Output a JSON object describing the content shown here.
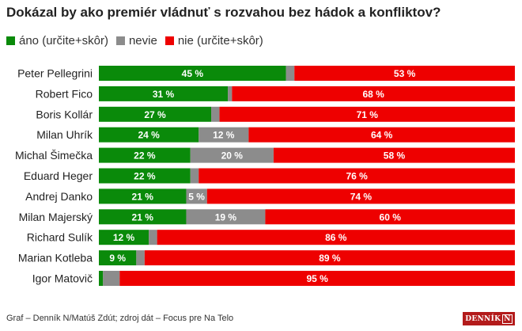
{
  "chart_data": {
    "type": "bar",
    "stacked": true,
    "orientation": "horizontal",
    "title": "Dokázal by ako premiér vládnuť s rozvahou bez hádok a konfliktov?",
    "categories": [
      "Peter Pellegrini",
      "Robert Fico",
      "Boris Kollár",
      "Milan Uhrík",
      "Michal Šimečka",
      "Eduard Heger",
      "Andrej Danko",
      "Milan Majerský",
      "Richard Sulík",
      "Marian Kotleba",
      "Igor Matovič"
    ],
    "series": [
      {
        "name": "áno (určite+skôr)",
        "color": "#0a8a0a",
        "values": [
          45,
          31,
          27,
          24,
          22,
          22,
          21,
          21,
          12,
          9,
          1
        ]
      },
      {
        "name": "nevie",
        "color": "#8c8c8c",
        "values": [
          2,
          1,
          2,
          12,
          20,
          2,
          5,
          19,
          2,
          2,
          4
        ]
      },
      {
        "name": "nie (určite+skôr)",
        "color": "#ee0000",
        "values": [
          53,
          68,
          71,
          64,
          58,
          76,
          74,
          60,
          86,
          89,
          95
        ]
      }
    ],
    "labels": [
      [
        "45 %",
        "",
        "53 %"
      ],
      [
        "31 %",
        "",
        "68 %"
      ],
      [
        "27 %",
        "",
        "71 %"
      ],
      [
        "24 %",
        "12 %",
        "64 %"
      ],
      [
        "22 %",
        "20 %",
        "58 %"
      ],
      [
        "22 %",
        "",
        "76 %"
      ],
      [
        "21 %",
        "5 %",
        "74 %"
      ],
      [
        "21 %",
        "19 %",
        "60 %"
      ],
      [
        "12 %",
        "",
        "86 %"
      ],
      [
        "9 %",
        "",
        "89 %"
      ],
      [
        "",
        "",
        "95 %"
      ]
    ],
    "xlim": [
      0,
      100
    ],
    "legend_position": "top-left"
  },
  "footer": {
    "source": "Graf – Denník N/Matúš Zdút; zdroj dát – Focus pre Na Telo",
    "logo_text": "DENNÍK",
    "logo_letter": "N"
  }
}
